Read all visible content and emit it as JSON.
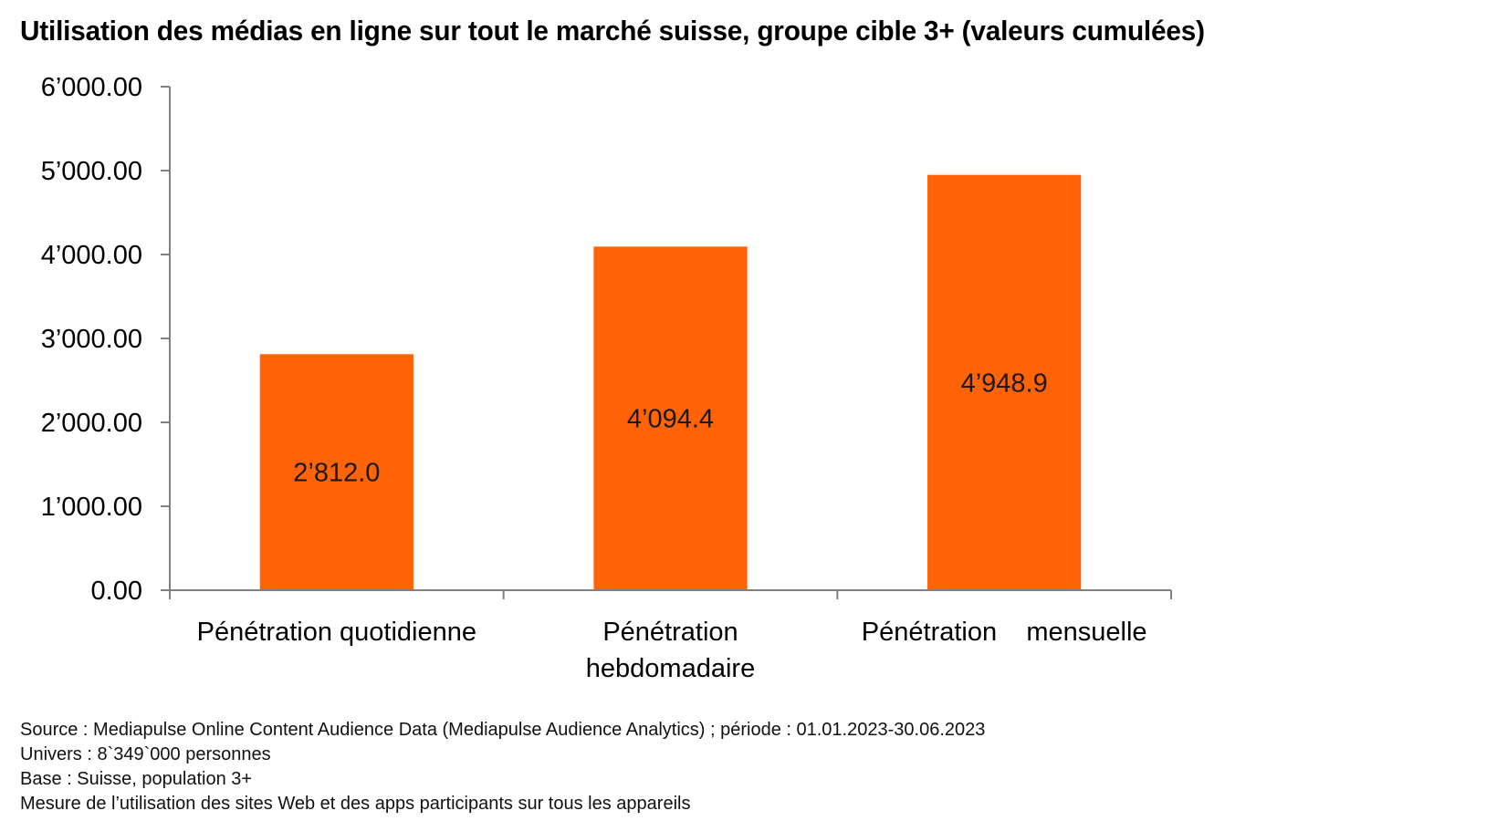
{
  "chart_data": {
    "type": "bar",
    "title": "Utilisation des médias en ligne sur tout le marché suisse, groupe cible 3+ (valeurs cumulées)",
    "xlabel": "",
    "ylabel": "",
    "ylim": [
      0,
      6000
    ],
    "grid": false,
    "yticks": [
      0,
      1000,
      2000,
      3000,
      4000,
      5000,
      6000
    ],
    "ytick_labels": [
      "0.00",
      "1’000.00",
      "2’000.00",
      "3’000.00",
      "4’000.00",
      "5’000.00",
      "6’000.00"
    ],
    "categories": [
      [
        "Pénétration quotidienne"
      ],
      [
        "Pénétration",
        "hebdomadaire"
      ],
      [
        "Pénétration    mensuelle"
      ]
    ],
    "values": [
      2812.0,
      4094.4,
      4948.9
    ],
    "data_labels": [
      "2’812.0",
      "4’094.4",
      "4’948.9"
    ],
    "bar_color": "#ff6308",
    "axis_color": "#808080"
  },
  "footer": {
    "source": "Source : Mediapulse Online Content Audience Data (Mediapulse Audience Analytics) ; période : 01.01.2023-30.06.2023",
    "univers": "Univers : 8`349`000 personnes",
    "base": "Base : Suisse, population 3+",
    "mesure": "Mesure de l’utilisation des sites Web et des apps participants sur tous les appareils"
  }
}
